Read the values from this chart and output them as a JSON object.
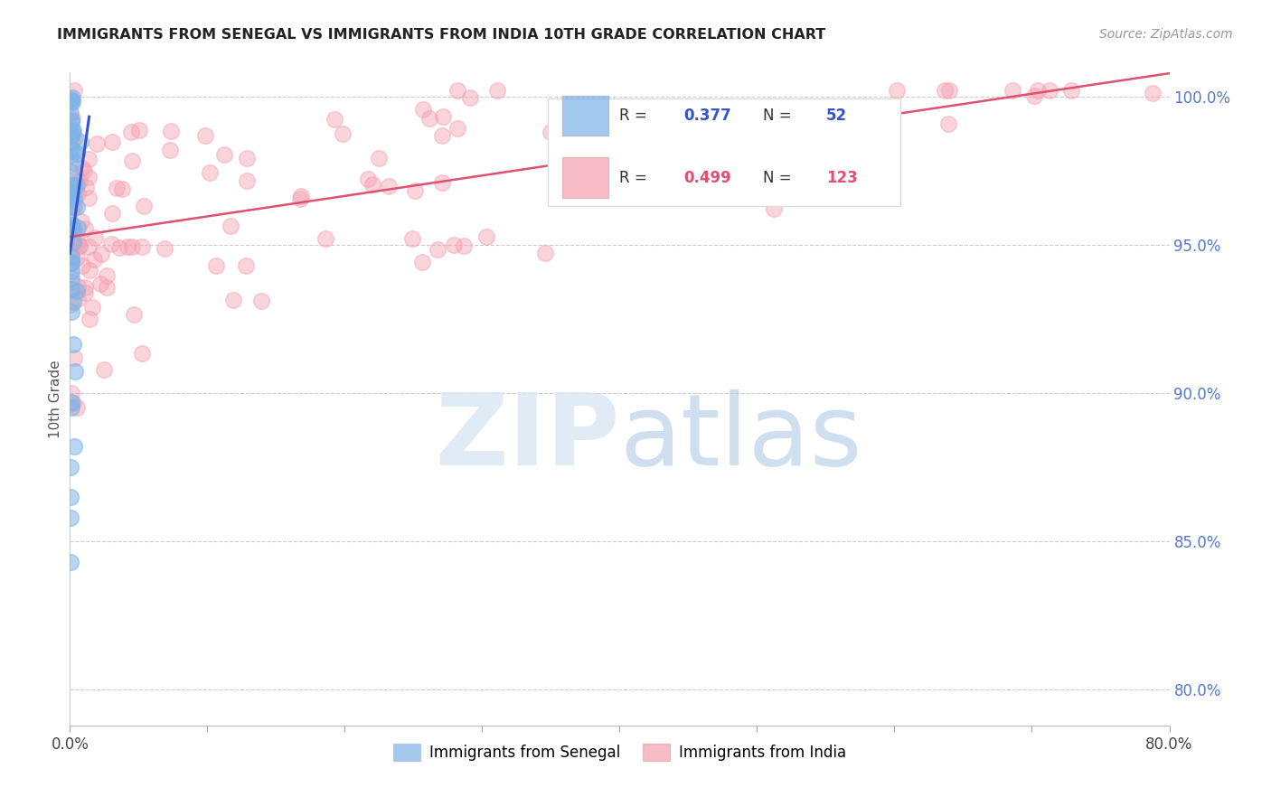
{
  "title": "IMMIGRANTS FROM SENEGAL VS IMMIGRANTS FROM INDIA 10TH GRADE CORRELATION CHART",
  "source": "Source: ZipAtlas.com",
  "ylabel": "10th Grade",
  "legend_blue_label": "Immigrants from Senegal",
  "legend_pink_label": "Immigrants from India",
  "R_blue": 0.377,
  "N_blue": 52,
  "R_pink": 0.499,
  "N_pink": 123,
  "blue_color": "#7EB3E8",
  "pink_color": "#F4A0B0",
  "trendline_blue": "#3355CC",
  "trendline_pink": "#E05070",
  "tick_label_color": "#5577CC",
  "xlim": [
    0.0,
    0.8
  ],
  "ylim": [
    0.788,
    1.008
  ],
  "y_ticks": [
    0.8,
    0.85,
    0.9,
    0.95,
    1.0
  ],
  "x_ticks": [
    0.0,
    0.1,
    0.2,
    0.3,
    0.4,
    0.5,
    0.6,
    0.7,
    0.8
  ]
}
